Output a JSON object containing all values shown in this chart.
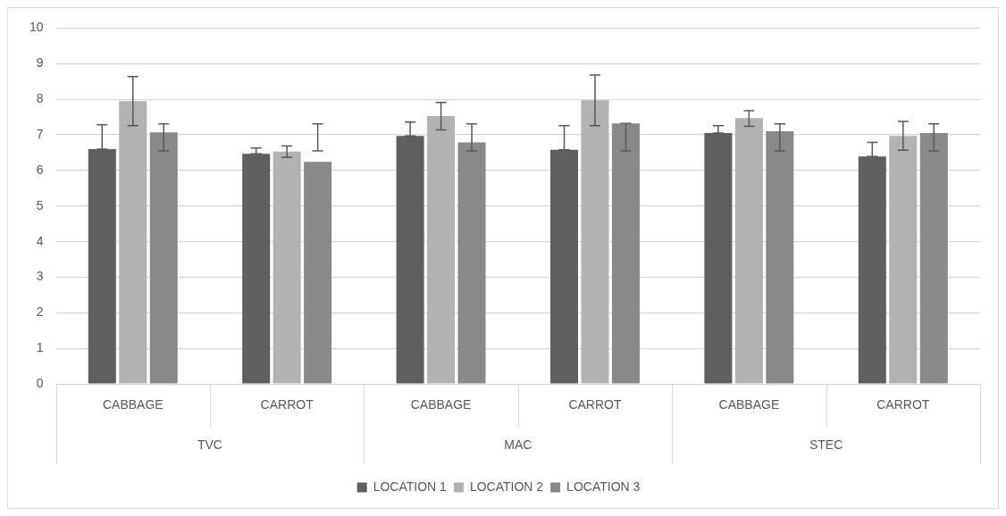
{
  "chart_data": {
    "type": "bar",
    "categories": [
      "CABBAGE",
      "CARROT",
      "CABBAGE",
      "CARROT",
      "CABBAGE",
      "CARROT"
    ],
    "annotations": [
      "TVC",
      "MAC",
      "STEC"
    ],
    "series": [
      {
        "name": "LOCATION 1",
        "color": "#5f5f5f",
        "values": [
          6.6,
          6.47,
          6.97,
          6.58,
          7.05,
          6.39
        ],
        "errors": [
          [
            6.6,
            7.28
          ],
          [
            6.47,
            6.63
          ],
          [
            6.97,
            7.36
          ],
          [
            6.58,
            7.26
          ],
          [
            7.05,
            7.26
          ],
          [
            6.39,
            6.79
          ]
        ]
      },
      {
        "name": "LOCATION 2",
        "color": "#b2b2b2",
        "values": [
          7.95,
          6.53,
          7.53,
          7.97,
          7.47,
          6.97
        ],
        "errors": [
          [
            7.26,
            8.64
          ],
          [
            6.37,
            6.69
          ],
          [
            7.14,
            7.91
          ],
          [
            7.26,
            8.68
          ],
          [
            7.24,
            7.68
          ],
          [
            6.57,
            7.38
          ]
        ]
      },
      {
        "name": "LOCATION 3",
        "color": "#898989",
        "values": [
          7.07,
          6.24,
          6.79,
          7.32,
          7.1,
          7.05
        ],
        "errors": [
          [
            6.55,
            7.31
          ],
          [
            6.55,
            7.31
          ],
          [
            6.55,
            7.31
          ],
          [
            6.55,
            7.32
          ],
          [
            6.55,
            7.31
          ],
          [
            6.55,
            7.31
          ]
        ]
      }
    ],
    "ylim": [
      0,
      10
    ],
    "yticks": [
      0,
      1,
      2,
      3,
      4,
      5,
      6,
      7,
      8,
      9,
      10
    ],
    "grid": "y",
    "legend": "bottom"
  }
}
